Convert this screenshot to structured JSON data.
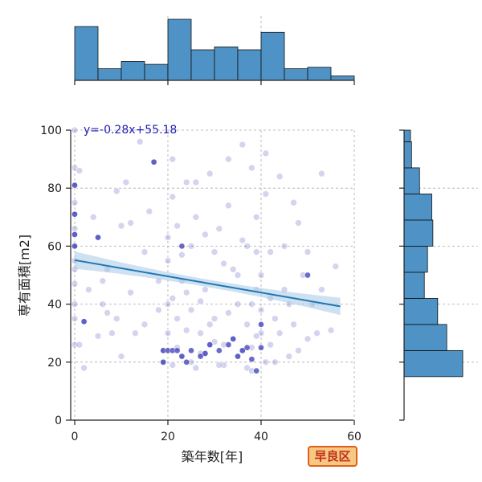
{
  "chart_data": {
    "type": "scatter",
    "xlabel": "築年数[年]",
    "ylabel": "専有面積[m2]",
    "xlim": [
      -1,
      60
    ],
    "ylim": [
      0,
      100
    ],
    "x_ticks": [
      0,
      20,
      40,
      60
    ],
    "y_ticks": [
      0,
      20,
      40,
      60,
      80,
      100
    ],
    "grid": true,
    "regression": {
      "label": "y=-0.28x+55.18",
      "slope": -0.28,
      "intercept": 55.18,
      "x_range": [
        0,
        57
      ],
      "ci_halfwidth_ends": 3.0,
      "ci_halfwidth_mid": 1.3
    },
    "region_badge": "早良区",
    "colors": {
      "point": "#3a3ab8",
      "line": "#1f77b4",
      "band": "#a6c8e6",
      "bar": "#4f93c6",
      "badge_bg": "#f7c784",
      "badge_border": "#e0601a",
      "badge_text": "#c0301a"
    },
    "x_histogram": {
      "bin_edges": [
        0,
        5,
        10,
        15,
        20,
        25,
        30,
        35,
        40,
        45,
        50,
        55,
        60
      ],
      "counts": [
        37,
        8,
        13,
        11,
        42,
        21,
        23,
        21,
        33,
        8,
        9,
        3
      ]
    },
    "y_histogram": {
      "bin_edges": [
        15,
        24,
        33,
        42,
        51,
        60,
        69,
        78,
        87,
        96,
        100
      ],
      "counts": [
        110,
        80,
        63,
        38,
        44,
        54,
        52,
        29,
        14,
        12
      ]
    },
    "points": [
      [
        0,
        100
      ],
      [
        0,
        87
      ],
      [
        0,
        81
      ],
      [
        0,
        75
      ],
      [
        0,
        71
      ],
      [
        0,
        66
      ],
      [
        0,
        64
      ],
      [
        0,
        60
      ],
      [
        0,
        55
      ],
      [
        0,
        52
      ],
      [
        0,
        47
      ],
      [
        0,
        40
      ],
      [
        0,
        35
      ],
      [
        0,
        26
      ],
      [
        1,
        86
      ],
      [
        1,
        26
      ],
      [
        2,
        18
      ],
      [
        2,
        34
      ],
      [
        3,
        45
      ],
      [
        4,
        70
      ],
      [
        5,
        63
      ],
      [
        5,
        29
      ],
      [
        6,
        40
      ],
      [
        6,
        48
      ],
      [
        7,
        37
      ],
      [
        8,
        30
      ],
      [
        9,
        79
      ],
      [
        10,
        67
      ],
      [
        10,
        22
      ],
      [
        11,
        82
      ],
      [
        12,
        68
      ],
      [
        13,
        30
      ],
      [
        14,
        96
      ],
      [
        15,
        33
      ],
      [
        16,
        72
      ],
      [
        17,
        89
      ],
      [
        18,
        38
      ],
      [
        19,
        24
      ],
      [
        19,
        20
      ],
      [
        20,
        40
      ],
      [
        20,
        55
      ],
      [
        20,
        63
      ],
      [
        21,
        90
      ],
      [
        21,
        77
      ],
      [
        22,
        25
      ],
      [
        22,
        35
      ],
      [
        23,
        48
      ],
      [
        24,
        82
      ],
      [
        25,
        20
      ],
      [
        25,
        60
      ],
      [
        26,
        70
      ],
      [
        27,
        30
      ],
      [
        28,
        23
      ],
      [
        28,
        45
      ],
      [
        29,
        85
      ],
      [
        30,
        35
      ],
      [
        30,
        27
      ],
      [
        31,
        66
      ],
      [
        32,
        19
      ],
      [
        32,
        54
      ],
      [
        33,
        74
      ],
      [
        34,
        28
      ],
      [
        35,
        40
      ],
      [
        35,
        22
      ],
      [
        36,
        62
      ],
      [
        36,
        95
      ],
      [
        37,
        33
      ],
      [
        37,
        18
      ],
      [
        38,
        87
      ],
      [
        38,
        25
      ],
      [
        39,
        45
      ],
      [
        39,
        70
      ],
      [
        40,
        30
      ],
      [
        40,
        38
      ],
      [
        41,
        78
      ],
      [
        41,
        20
      ],
      [
        42,
        58
      ],
      [
        42,
        26
      ],
      [
        43,
        35
      ],
      [
        44,
        84
      ],
      [
        45,
        45
      ],
      [
        46,
        22
      ],
      [
        47,
        33
      ],
      [
        48,
        68
      ],
      [
        49,
        50
      ],
      [
        50,
        28
      ],
      [
        51,
        40
      ],
      [
        52,
        30
      ],
      [
        53,
        85
      ],
      [
        55,
        31
      ],
      [
        56,
        53
      ],
      [
        21,
        42
      ],
      [
        23,
        22
      ],
      [
        24,
        31
      ],
      [
        26,
        18
      ],
      [
        27,
        41
      ],
      [
        29,
        26
      ],
      [
        31,
        19
      ],
      [
        33,
        37
      ],
      [
        34,
        52
      ],
      [
        36,
        24
      ],
      [
        38,
        17
      ],
      [
        39,
        29
      ],
      [
        40,
        50
      ],
      [
        42,
        42
      ],
      [
        43,
        20
      ],
      [
        37,
        60
      ],
      [
        33,
        90
      ],
      [
        30,
        58
      ],
      [
        26,
        82
      ],
      [
        22,
        67
      ],
      [
        18,
        48
      ],
      [
        15,
        58
      ],
      [
        12,
        44
      ],
      [
        9,
        35
      ],
      [
        7,
        52
      ],
      [
        45,
        60
      ],
      [
        47,
        75
      ],
      [
        50,
        58
      ],
      [
        53,
        45
      ],
      [
        41,
        92
      ],
      [
        28,
        64
      ],
      [
        25,
        38
      ],
      [
        23,
        57
      ],
      [
        20,
        30
      ],
      [
        35,
        50
      ],
      [
        38,
        40
      ],
      [
        32,
        26
      ],
      [
        29,
        33
      ],
      [
        27,
        23
      ],
      [
        24,
        44
      ],
      [
        21,
        19
      ],
      [
        44,
        30
      ],
      [
        46,
        40
      ],
      [
        48,
        24
      ],
      [
        39,
        58
      ]
    ],
    "dark_points": [
      [
        0,
        81
      ],
      [
        0,
        71
      ],
      [
        0,
        64
      ],
      [
        0,
        60
      ],
      [
        2,
        34
      ],
      [
        5,
        63
      ],
      [
        17,
        89
      ],
      [
        19,
        24
      ],
      [
        20,
        24
      ],
      [
        21,
        24
      ],
      [
        22,
        24
      ],
      [
        23,
        22
      ],
      [
        19,
        20
      ],
      [
        25,
        24
      ],
      [
        27,
        22
      ],
      [
        29,
        26
      ],
      [
        31,
        24
      ],
      [
        33,
        26
      ],
      [
        35,
        22
      ],
      [
        37,
        25
      ],
      [
        38,
        21
      ],
      [
        40,
        25
      ],
      [
        40,
        33
      ],
      [
        50,
        50
      ],
      [
        39,
        17
      ],
      [
        36,
        24
      ],
      [
        34,
        28
      ],
      [
        23,
        60
      ],
      [
        28,
        23
      ],
      [
        24,
        20
      ]
    ]
  }
}
